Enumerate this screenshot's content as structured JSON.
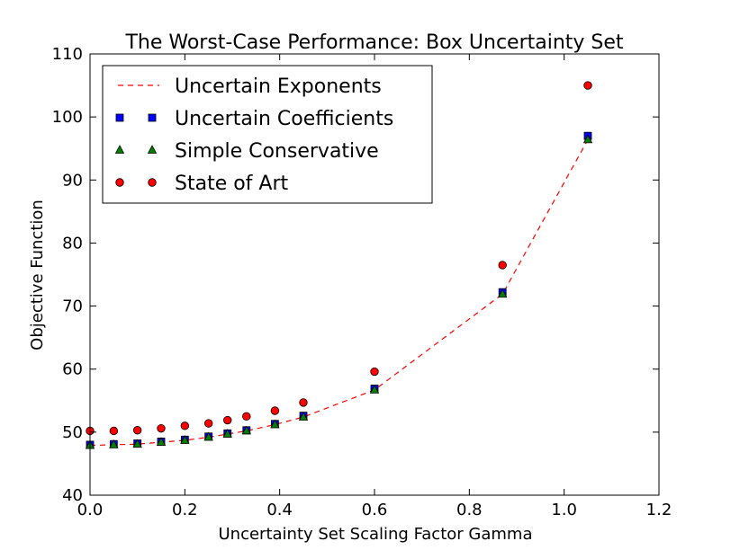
{
  "chart_data": {
    "type": "scatter",
    "title": "The Worst-Case Performance: Box Uncertainty Set",
    "xlabel": "Uncertainty Set Scaling Factor Gamma",
    "ylabel": "Objective Function",
    "xlim": [
      0.0,
      1.2
    ],
    "ylim": [
      40,
      110
    ],
    "xticks": [
      "0.0",
      "0.2",
      "0.4",
      "0.6",
      "0.8",
      "1.0",
      "1.2"
    ],
    "yticks": [
      "40",
      "50",
      "60",
      "70",
      "80",
      "90",
      "100",
      "110"
    ],
    "grid": false,
    "legend_position": "top-left",
    "x": [
      0.0,
      0.05,
      0.1,
      0.15,
      0.2,
      0.25,
      0.29,
      0.33,
      0.39,
      0.45,
      0.6,
      0.87,
      1.05
    ],
    "series": [
      {
        "name": "Uncertain Exponents",
        "style": "dashed-line",
        "color": "#ff0000",
        "values": [
          47.9,
          48.0,
          48.1,
          48.4,
          48.7,
          49.2,
          49.7,
          50.2,
          51.2,
          52.4,
          56.7,
          71.9,
          96.4
        ]
      },
      {
        "name": "Uncertain Coefficients",
        "style": "square-marker",
        "color": "#0000ff",
        "values": [
          48.0,
          48.1,
          48.2,
          48.5,
          48.8,
          49.3,
          49.8,
          50.3,
          51.3,
          52.6,
          56.9,
          72.2,
          97.0
        ]
      },
      {
        "name": "Simple Conservative",
        "style": "triangle-marker",
        "color": "#007f00",
        "values": [
          47.9,
          48.0,
          48.1,
          48.4,
          48.7,
          49.2,
          49.7,
          50.2,
          51.2,
          52.4,
          56.7,
          71.9,
          96.4
        ]
      },
      {
        "name": "State of Art",
        "style": "circle-marker",
        "color": "#ff0000",
        "values": [
          50.2,
          50.2,
          50.3,
          50.6,
          51.0,
          51.4,
          51.9,
          52.5,
          53.4,
          54.7,
          59.6,
          76.5,
          105.0
        ]
      }
    ]
  }
}
